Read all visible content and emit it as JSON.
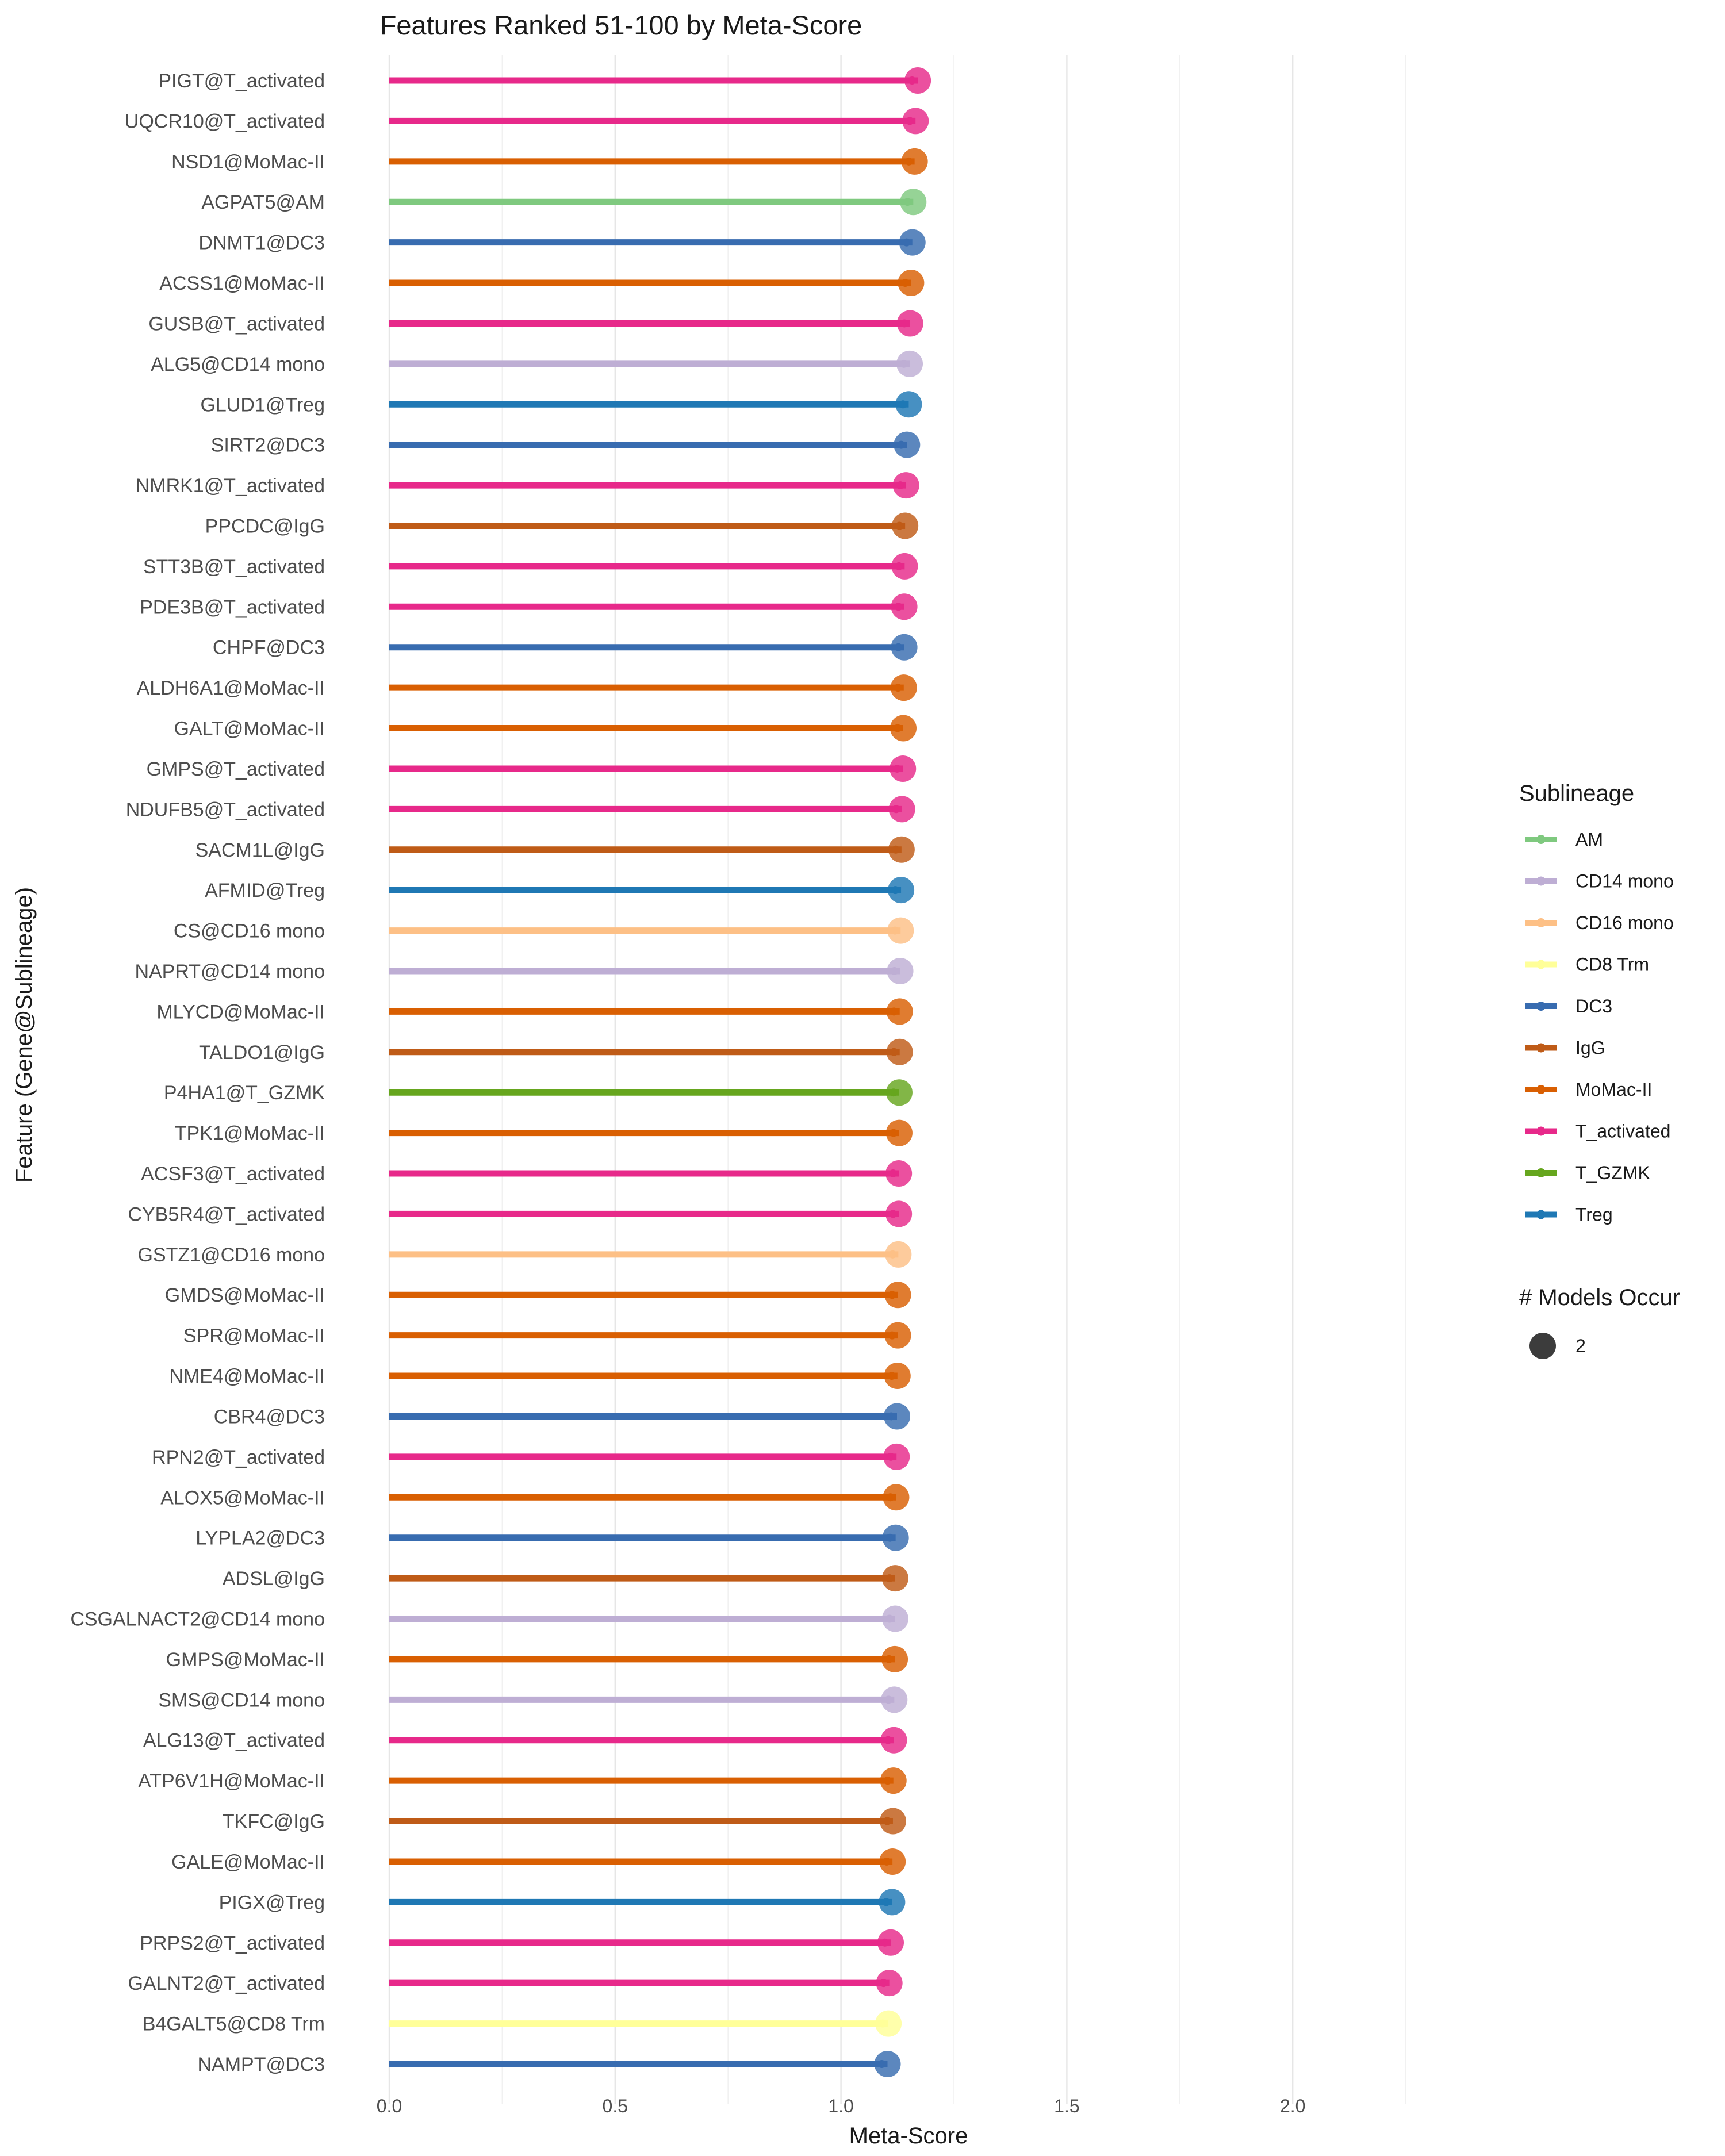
{
  "chart_data": {
    "type": "lollipop",
    "title": "Features Ranked 51-100 by Meta-Score",
    "xlabel": "Meta-Score",
    "ylabel": "Feature (Gene@Sublineage)",
    "xlim": [
      -0.1,
      2.55
    ],
    "x_ticks": [
      0.0,
      0.5,
      1.0,
      1.5,
      2.0
    ],
    "x_tick_labels": [
      "0.0",
      "0.5",
      "1.0",
      "1.5",
      "2.0"
    ],
    "grid": true,
    "legend_position": "right",
    "color_legend": {
      "title": "Sublineage",
      "entries": [
        {
          "label": "AM",
          "color": "#7FC97F"
        },
        {
          "label": "CD14 mono",
          "color": "#BEAED4"
        },
        {
          "label": "CD16 mono",
          "color": "#FDC086"
        },
        {
          "label": "CD8 Trm",
          "color": "#FFFF99"
        },
        {
          "label": "DC3",
          "color": "#386CB0"
        },
        {
          "label": "IgG",
          "color": "#BF5B17"
        },
        {
          "label": "MoMac-II",
          "color": "#D95F02"
        },
        {
          "label": "T_activated",
          "color": "#E7298A"
        },
        {
          "label": "T_GZMK",
          "color": "#66A61E"
        },
        {
          "label": "Treg",
          "color": "#1F78B4"
        }
      ]
    },
    "size_legend": {
      "title": "# Models Occur",
      "entries": [
        {
          "label": "2"
        }
      ]
    },
    "features": [
      {
        "label": "PIGT@T_activated",
        "group": "T_activated",
        "value": 1.17
      },
      {
        "label": "UQCR10@T_activated",
        "group": "T_activated",
        "value": 1.165
      },
      {
        "label": "NSD1@MoMac-II",
        "group": "MoMac-II",
        "value": 1.163
      },
      {
        "label": "AGPAT5@AM",
        "group": "AM",
        "value": 1.16
      },
      {
        "label": "DNMT1@DC3",
        "group": "DC3",
        "value": 1.158
      },
      {
        "label": "ACSS1@MoMac-II",
        "group": "MoMac-II",
        "value": 1.155
      },
      {
        "label": "GUSB@T_activated",
        "group": "T_activated",
        "value": 1.153
      },
      {
        "label": "ALG5@CD14 mono",
        "group": "CD14 mono",
        "value": 1.152
      },
      {
        "label": "GLUD1@Treg",
        "group": "Treg",
        "value": 1.15
      },
      {
        "label": "SIRT2@DC3",
        "group": "DC3",
        "value": 1.146
      },
      {
        "label": "NMRK1@T_activated",
        "group": "T_activated",
        "value": 1.144
      },
      {
        "label": "PPCDC@IgG",
        "group": "IgG",
        "value": 1.142
      },
      {
        "label": "STT3B@T_activated",
        "group": "T_activated",
        "value": 1.141
      },
      {
        "label": "PDE3B@T_activated",
        "group": "T_activated",
        "value": 1.14
      },
      {
        "label": "CHPF@DC3",
        "group": "DC3",
        "value": 1.14
      },
      {
        "label": "ALDH6A1@MoMac-II",
        "group": "MoMac-II",
        "value": 1.139
      },
      {
        "label": "GALT@MoMac-II",
        "group": "MoMac-II",
        "value": 1.138
      },
      {
        "label": "GMPS@T_activated",
        "group": "T_activated",
        "value": 1.137
      },
      {
        "label": "NDUFB5@T_activated",
        "group": "T_activated",
        "value": 1.135
      },
      {
        "label": "SACM1L@IgG",
        "group": "IgG",
        "value": 1.134
      },
      {
        "label": "AFMID@Treg",
        "group": "Treg",
        "value": 1.133
      },
      {
        "label": "CS@CD16 mono",
        "group": "CD16 mono",
        "value": 1.132
      },
      {
        "label": "NAPRT@CD14 mono",
        "group": "CD14 mono",
        "value": 1.131
      },
      {
        "label": "MLYCD@MoMac-II",
        "group": "MoMac-II",
        "value": 1.13
      },
      {
        "label": "TALDO1@IgG",
        "group": "IgG",
        "value": 1.13
      },
      {
        "label": "P4HA1@T_GZMK",
        "group": "T_GZMK",
        "value": 1.129
      },
      {
        "label": "TPK1@MoMac-II",
        "group": "MoMac-II",
        "value": 1.129
      },
      {
        "label": "ACSF3@T_activated",
        "group": "T_activated",
        "value": 1.128
      },
      {
        "label": "CYB5R4@T_activated",
        "group": "T_activated",
        "value": 1.128
      },
      {
        "label": "GSTZ1@CD16 mono",
        "group": "CD16 mono",
        "value": 1.127
      },
      {
        "label": "GMDS@MoMac-II",
        "group": "MoMac-II",
        "value": 1.126
      },
      {
        "label": "SPR@MoMac-II",
        "group": "MoMac-II",
        "value": 1.126
      },
      {
        "label": "NME4@MoMac-II",
        "group": "MoMac-II",
        "value": 1.125
      },
      {
        "label": "CBR4@DC3",
        "group": "DC3",
        "value": 1.124
      },
      {
        "label": "RPN2@T_activated",
        "group": "T_activated",
        "value": 1.123
      },
      {
        "label": "ALOX5@MoMac-II",
        "group": "MoMac-II",
        "value": 1.122
      },
      {
        "label": "LYPLA2@DC3",
        "group": "DC3",
        "value": 1.121
      },
      {
        "label": "ADSL@IgG",
        "group": "IgG",
        "value": 1.12
      },
      {
        "label": "CSGALNACT2@CD14 mono",
        "group": "CD14 mono",
        "value": 1.12
      },
      {
        "label": "GMPS@MoMac-II",
        "group": "MoMac-II",
        "value": 1.119
      },
      {
        "label": "SMS@CD14 mono",
        "group": "CD14 mono",
        "value": 1.118
      },
      {
        "label": "ALG13@T_activated",
        "group": "T_activated",
        "value": 1.117
      },
      {
        "label": "ATP6V1H@MoMac-II",
        "group": "MoMac-II",
        "value": 1.116
      },
      {
        "label": "TKFC@IgG",
        "group": "IgG",
        "value": 1.115
      },
      {
        "label": "GALE@MoMac-II",
        "group": "MoMac-II",
        "value": 1.114
      },
      {
        "label": "PIGX@Treg",
        "group": "Treg",
        "value": 1.113
      },
      {
        "label": "PRPS2@T_activated",
        "group": "T_activated",
        "value": 1.11
      },
      {
        "label": "GALNT2@T_activated",
        "group": "T_activated",
        "value": 1.107
      },
      {
        "label": "B4GALT5@CD8 Trm",
        "group": "CD8 Trm",
        "value": 1.105
      },
      {
        "label": "NAMPT@DC3",
        "group": "DC3",
        "value": 1.103
      }
    ]
  }
}
